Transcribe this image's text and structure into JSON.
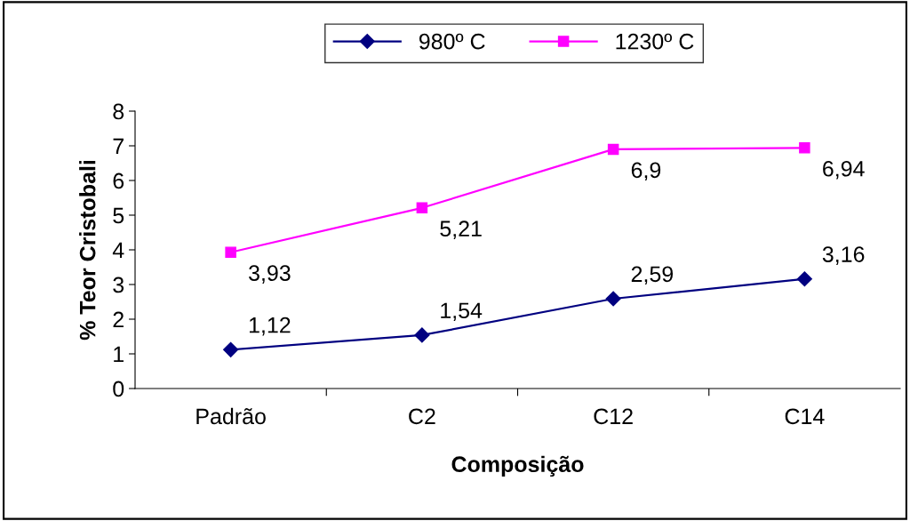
{
  "chart_data": {
    "type": "line",
    "xlabel": "Composição",
    "ylabel": "% Teor Cristobali",
    "categories": [
      "Padrão",
      "C2",
      "C12",
      "C14"
    ],
    "series": [
      {
        "name": "980º C",
        "color": "#000080",
        "marker": "diamond",
        "values": [
          1.12,
          1.54,
          2.59,
          3.16
        ],
        "value_labels": [
          "1,12",
          "1,54",
          "2,59",
          "3,16"
        ]
      },
      {
        "name": "1230º C",
        "color": "#ff00ff",
        "marker": "square",
        "values": [
          3.93,
          5.21,
          6.9,
          6.94
        ],
        "value_labels": [
          "3,93",
          "5,21",
          "6,9",
          "6,94"
        ]
      }
    ],
    "ylim": [
      0,
      8
    ],
    "yticks": [
      0,
      1,
      2,
      3,
      4,
      5,
      6,
      7,
      8
    ],
    "grid": false,
    "legend": "top"
  }
}
